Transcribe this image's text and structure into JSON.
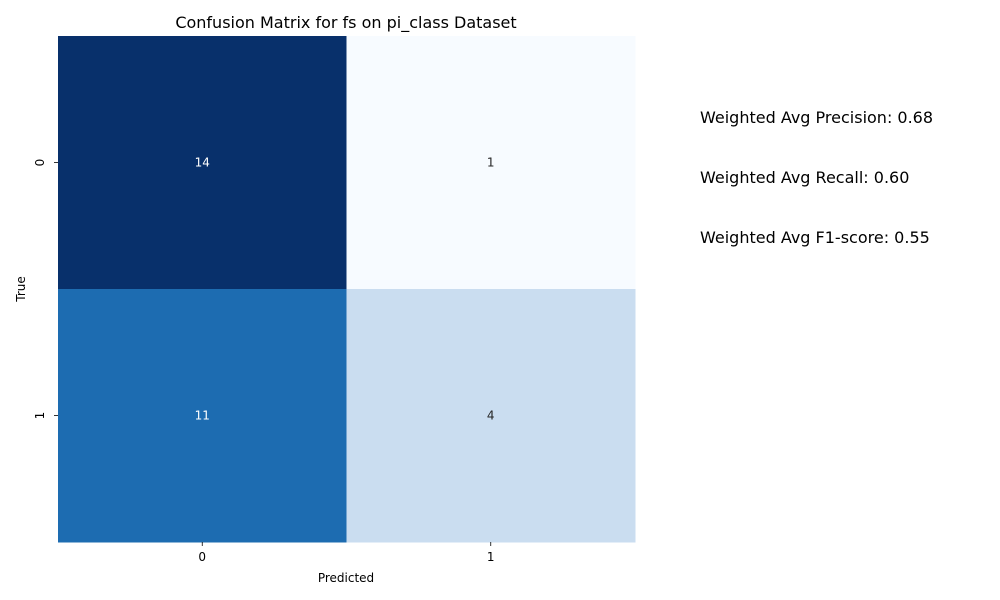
{
  "chart_data": {
    "type": "heatmap",
    "title": "Confusion Matrix for fs on pi_class Dataset",
    "xlabel": "Predicted",
    "ylabel": "True",
    "x_categories": [
      "0",
      "1"
    ],
    "y_categories": [
      "0",
      "1"
    ],
    "values": [
      [
        14,
        1
      ],
      [
        11,
        4
      ]
    ],
    "value_range": [
      1,
      14
    ],
    "colormap": "Blues",
    "colorbar": false,
    "grid": false
  },
  "metrics": {
    "precision": "Weighted Avg Precision: 0.68",
    "recall": "Weighted Avg Recall: 0.60",
    "f1": "Weighted Avg F1-score: 0.55"
  }
}
